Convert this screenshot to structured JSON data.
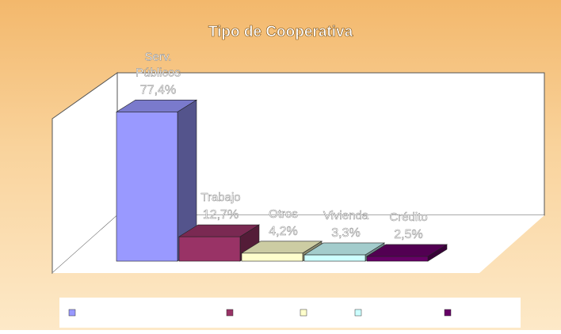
{
  "chart_data": {
    "type": "bar",
    "title": "Tipo de Cooperativa",
    "categories": [
      "Serv. Públicos",
      "Trabajo",
      "Otros",
      "Vivienda",
      "Crédito"
    ],
    "values": [
      77.4,
      12.7,
      4.2,
      3.3,
      2.5
    ],
    "data_labels": [
      "77,4%",
      "12,7%",
      "4,2%",
      "3,3%",
      "2,5%"
    ],
    "ylim": [
      0,
      80
    ],
    "grid": false,
    "legend": {
      "position": "bottom",
      "entries": [
        "",
        "",
        "",
        "",
        ""
      ]
    },
    "colors": {
      "bars": [
        "#9999ff",
        "#993366",
        "#ffffcc",
        "#ccffff",
        "#660066"
      ],
      "wall": "#ffffff",
      "floor": "#ffffff",
      "text": "#ffffff"
    }
  }
}
